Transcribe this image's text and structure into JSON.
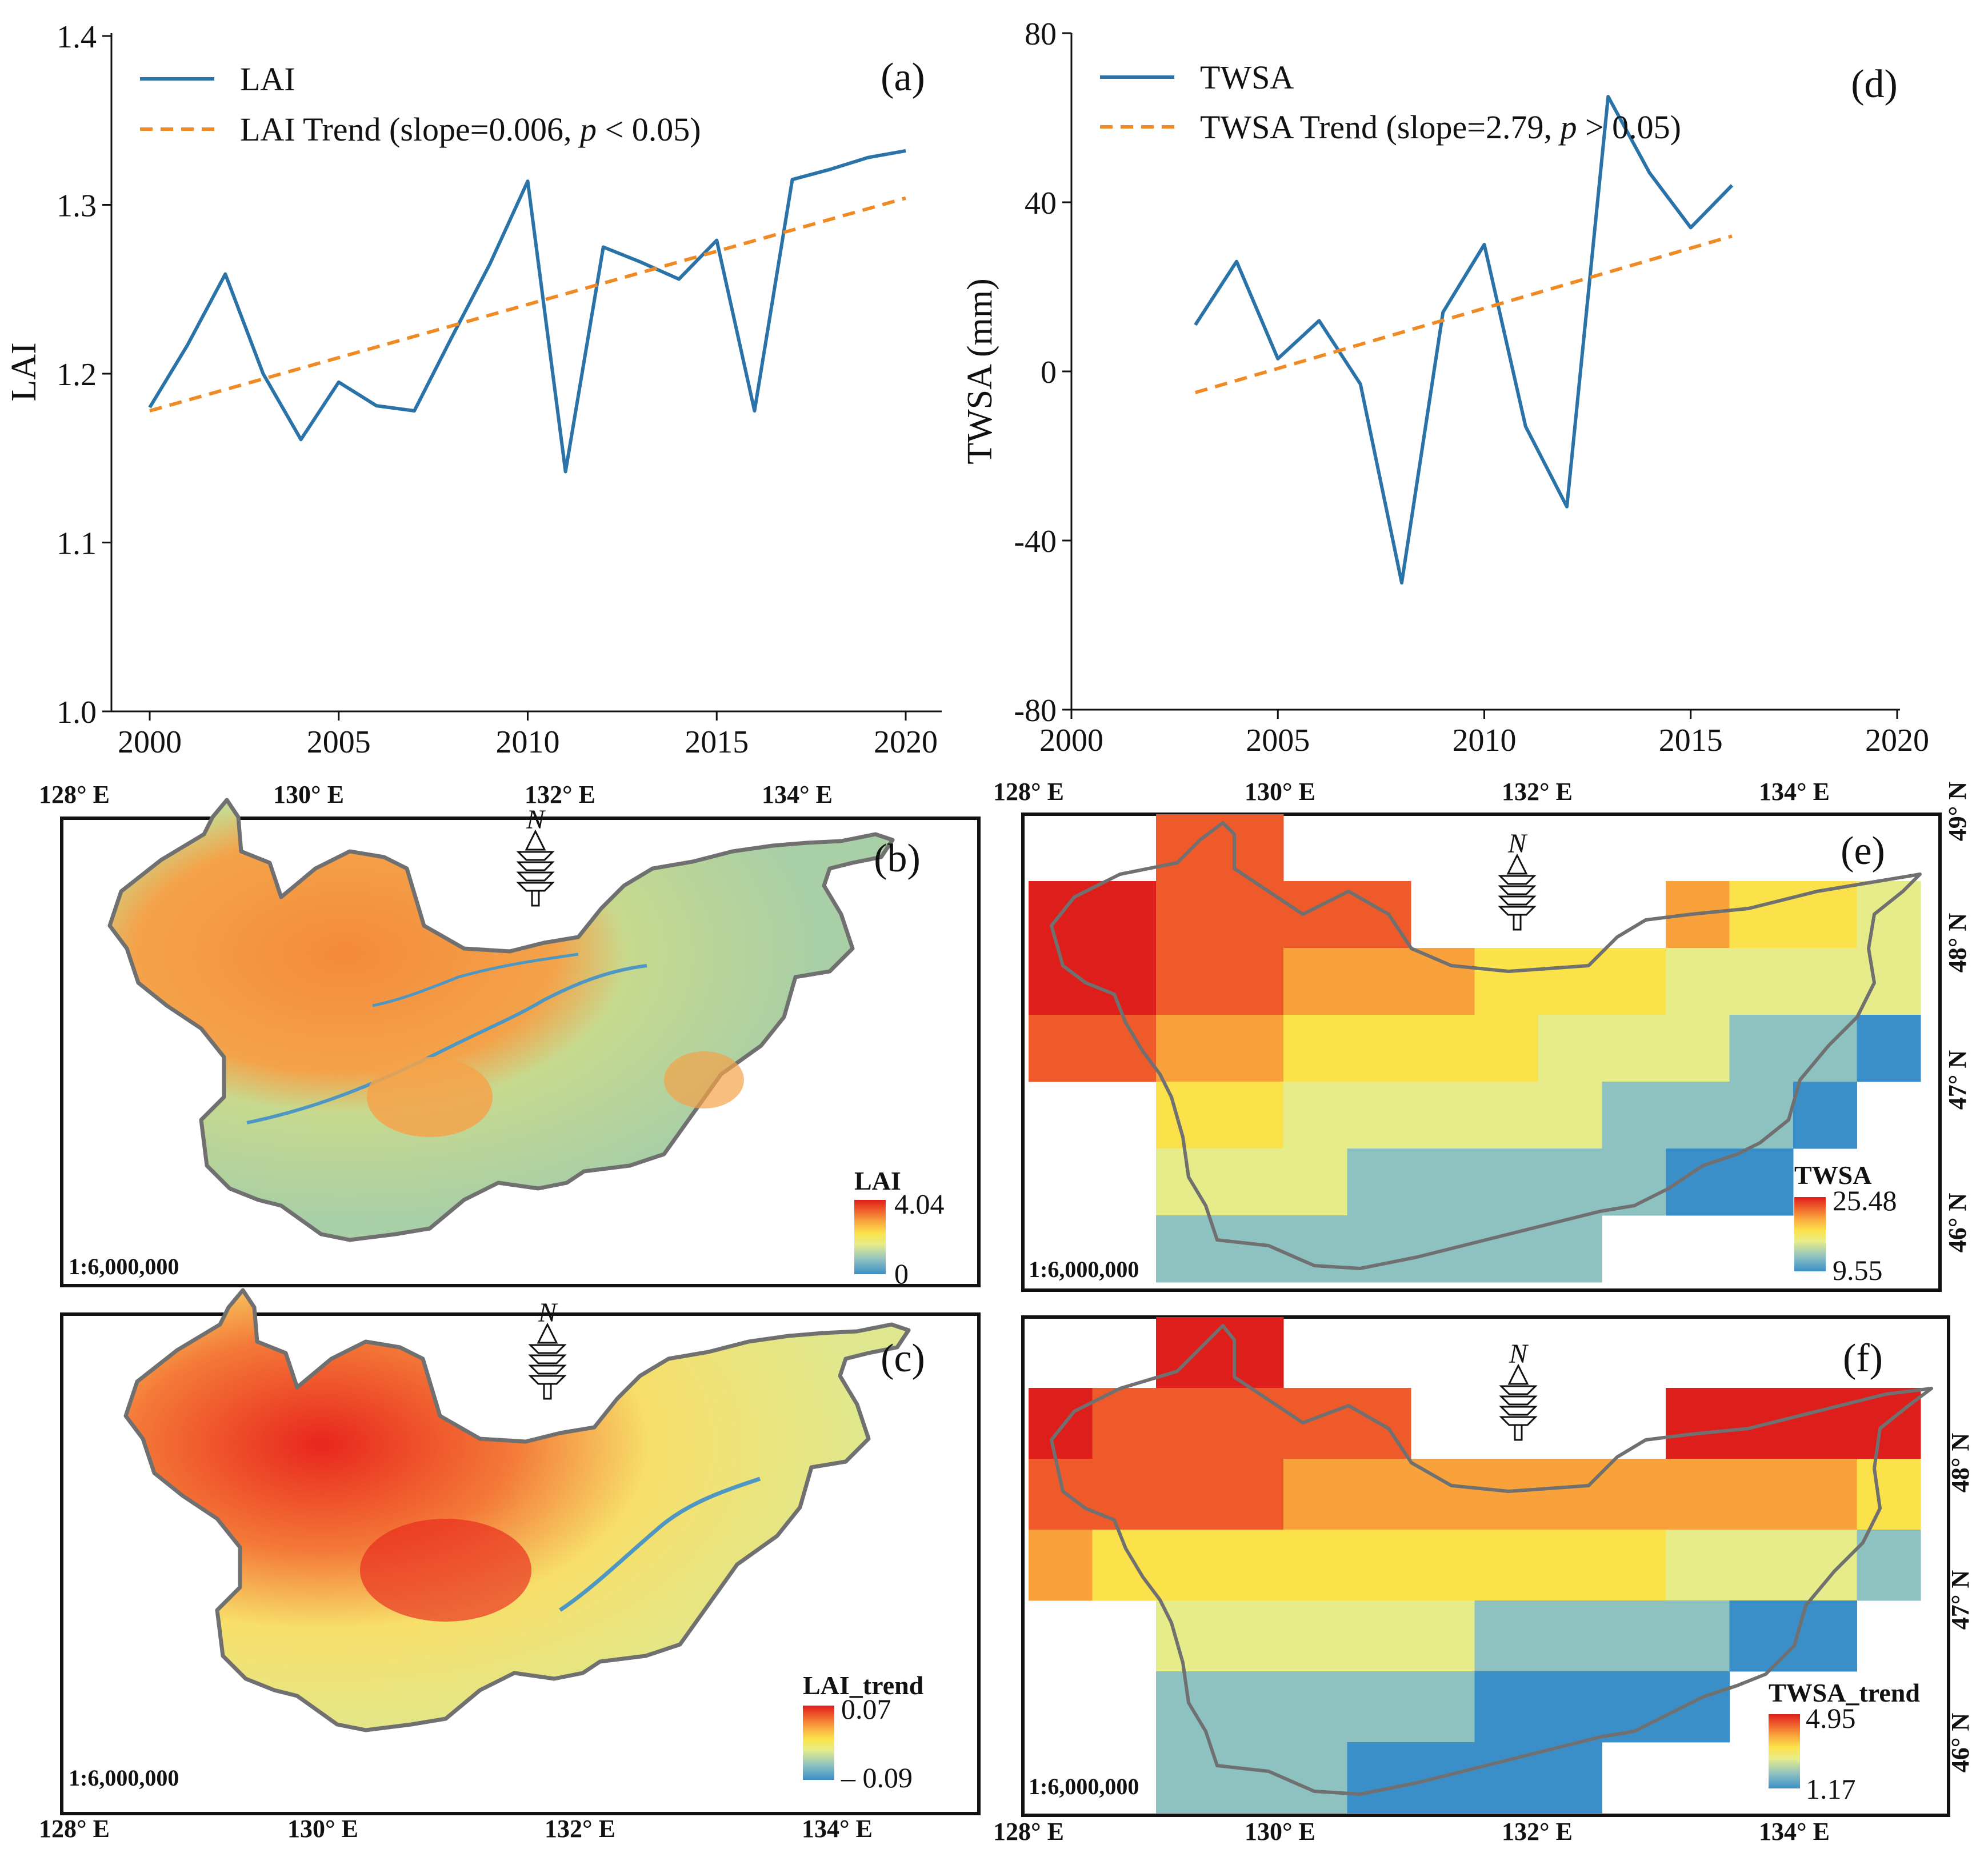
{
  "colors": {
    "line": "#2a73a8",
    "trend": "#f08a24",
    "basin_outline": "#707070",
    "ramp": [
      "#3a8fc8",
      "#8ec2c0",
      "#e6ec8a",
      "#fbe24a",
      "#f9a23c",
      "#ee5a2a",
      "#dd1e1a"
    ]
  },
  "icons": {
    "north_arrow": "north-arrow-icon"
  },
  "chart_data": [
    {
      "panel": "(a)",
      "type": "line",
      "title": "",
      "xlabel": "",
      "ylabel": "LAI",
      "xlim": [
        2000,
        2020
      ],
      "ylim": [
        1.0,
        1.4
      ],
      "xticks": [
        "2000",
        "2005",
        "2010",
        "2015",
        "2020"
      ],
      "yticks": [
        "1.0",
        "1.1",
        "1.2",
        "1.3",
        "1.4"
      ],
      "legend_position": "top-left",
      "series": [
        {
          "name": "LAI",
          "style": "solid",
          "x": [
            2000,
            2001,
            2002,
            2003,
            2004,
            2005,
            2006,
            2007,
            2008,
            2009,
            2010,
            2011,
            2012,
            2013,
            2014,
            2015,
            2016,
            2017,
            2018,
            2019,
            2020
          ],
          "values": [
            1.18,
            1.217,
            1.259,
            1.2,
            1.161,
            1.195,
            1.181,
            1.178,
            1.222,
            1.265,
            1.314,
            1.142,
            1.275,
            1.266,
            1.256,
            1.279,
            1.178,
            1.315,
            1.321,
            1.328,
            1.332
          ]
        },
        {
          "name_prefix": "LAI Trend (slope=0.006, ",
          "name_p": "p",
          "name_suffix": " < 0.05)",
          "style": "dashed",
          "x": [
            2000,
            2020
          ],
          "values": [
            1.178,
            1.304
          ]
        }
      ]
    },
    {
      "panel": "(d)",
      "type": "line",
      "title": "",
      "xlabel": "",
      "ylabel": "TWSA (mm)",
      "xlim": [
        2000,
        2020
      ],
      "ylim": [
        -80,
        80
      ],
      "xticks": [
        "2000",
        "2005",
        "2010",
        "2015",
        "2020"
      ],
      "yticks": [
        "-80",
        "-40",
        "0",
        "40",
        "80"
      ],
      "legend_position": "top-left",
      "series": [
        {
          "name": "TWSA",
          "style": "solid",
          "x": [
            2003,
            2004,
            2005,
            2006,
            2007,
            2008,
            2009,
            2010,
            2011,
            2012,
            2013,
            2014,
            2015,
            2016
          ],
          "values": [
            11,
            26,
            3,
            12,
            -3,
            -50,
            14,
            30,
            -13,
            -32,
            65,
            47,
            34,
            44
          ]
        },
        {
          "name_prefix": "TWSA Trend (slope=2.79, ",
          "name_p": "p",
          "name_suffix": " > 0.05)",
          "style": "dashed",
          "x": [
            2003,
            2016
          ],
          "values": [
            -5,
            32
          ]
        }
      ]
    }
  ],
  "maps": {
    "b": {
      "label": "(b)",
      "legend_title": "LAI",
      "legend_max": "4.04",
      "legend_min": "0",
      "scale": "1:6,000,000"
    },
    "c": {
      "label": "(c)",
      "legend_title": "LAI_trend",
      "legend_max": "0.07",
      "legend_min": "– 0.09",
      "scale": "1:6,000,000"
    },
    "e": {
      "label": "(e)",
      "legend_title": "TWSA",
      "legend_max": "25.48",
      "legend_min": "9.55",
      "scale": "1:6,000,000"
    },
    "f": {
      "label": "(f)",
      "legend_title": "TWSA_trend",
      "legend_max": "4.95",
      "legend_min": "1.17",
      "scale": "1:6,000,000"
    },
    "north_letter": "N",
    "lon_labels": [
      "128° E",
      "130° E",
      "132° E",
      "134° E"
    ],
    "lat_labels": [
      "49° N",
      "48° N",
      "47° N",
      "46° N"
    ],
    "grid_e": [
      [
        null,
        null,
        5,
        5,
        null,
        null,
        null,
        null,
        null,
        null,
        null,
        null,
        null,
        null
      ],
      [
        6,
        6,
        5,
        5,
        5,
        5,
        null,
        null,
        null,
        null,
        4,
        3,
        3,
        2
      ],
      [
        6,
        6,
        5,
        5,
        4,
        4,
        4,
        3,
        3,
        3,
        2,
        2,
        2,
        2
      ],
      [
        5,
        5,
        4,
        4,
        3,
        3,
        3,
        3,
        2,
        2,
        2,
        1,
        1,
        0
      ],
      [
        null,
        null,
        3,
        3,
        2,
        2,
        2,
        2,
        2,
        1,
        1,
        1,
        0,
        null
      ],
      [
        null,
        null,
        2,
        2,
        2,
        1,
        1,
        1,
        1,
        1,
        0,
        0,
        null,
        null
      ],
      [
        null,
        null,
        1,
        1,
        1,
        1,
        1,
        1,
        1,
        null,
        null,
        null,
        null,
        null
      ]
    ],
    "grid_f": [
      [
        null,
        null,
        6,
        6,
        null,
        null,
        null,
        null,
        null,
        null,
        null,
        null,
        null,
        null
      ],
      [
        6,
        5,
        5,
        5,
        5,
        5,
        null,
        null,
        null,
        null,
        6,
        6,
        6,
        6
      ],
      [
        5,
        5,
        5,
        5,
        4,
        4,
        4,
        4,
        4,
        4,
        4,
        4,
        4,
        3
      ],
      [
        4,
        3,
        3,
        3,
        3,
        3,
        3,
        3,
        3,
        3,
        2,
        2,
        2,
        1
      ],
      [
        null,
        null,
        2,
        2,
        2,
        2,
        2,
        1,
        1,
        1,
        1,
        0,
        0,
        null
      ],
      [
        null,
        null,
        1,
        1,
        1,
        1,
        1,
        0,
        0,
        0,
        0,
        null,
        null,
        null
      ],
      [
        null,
        null,
        1,
        1,
        1,
        0,
        0,
        0,
        0,
        null,
        null,
        null,
        null,
        null
      ]
    ]
  }
}
